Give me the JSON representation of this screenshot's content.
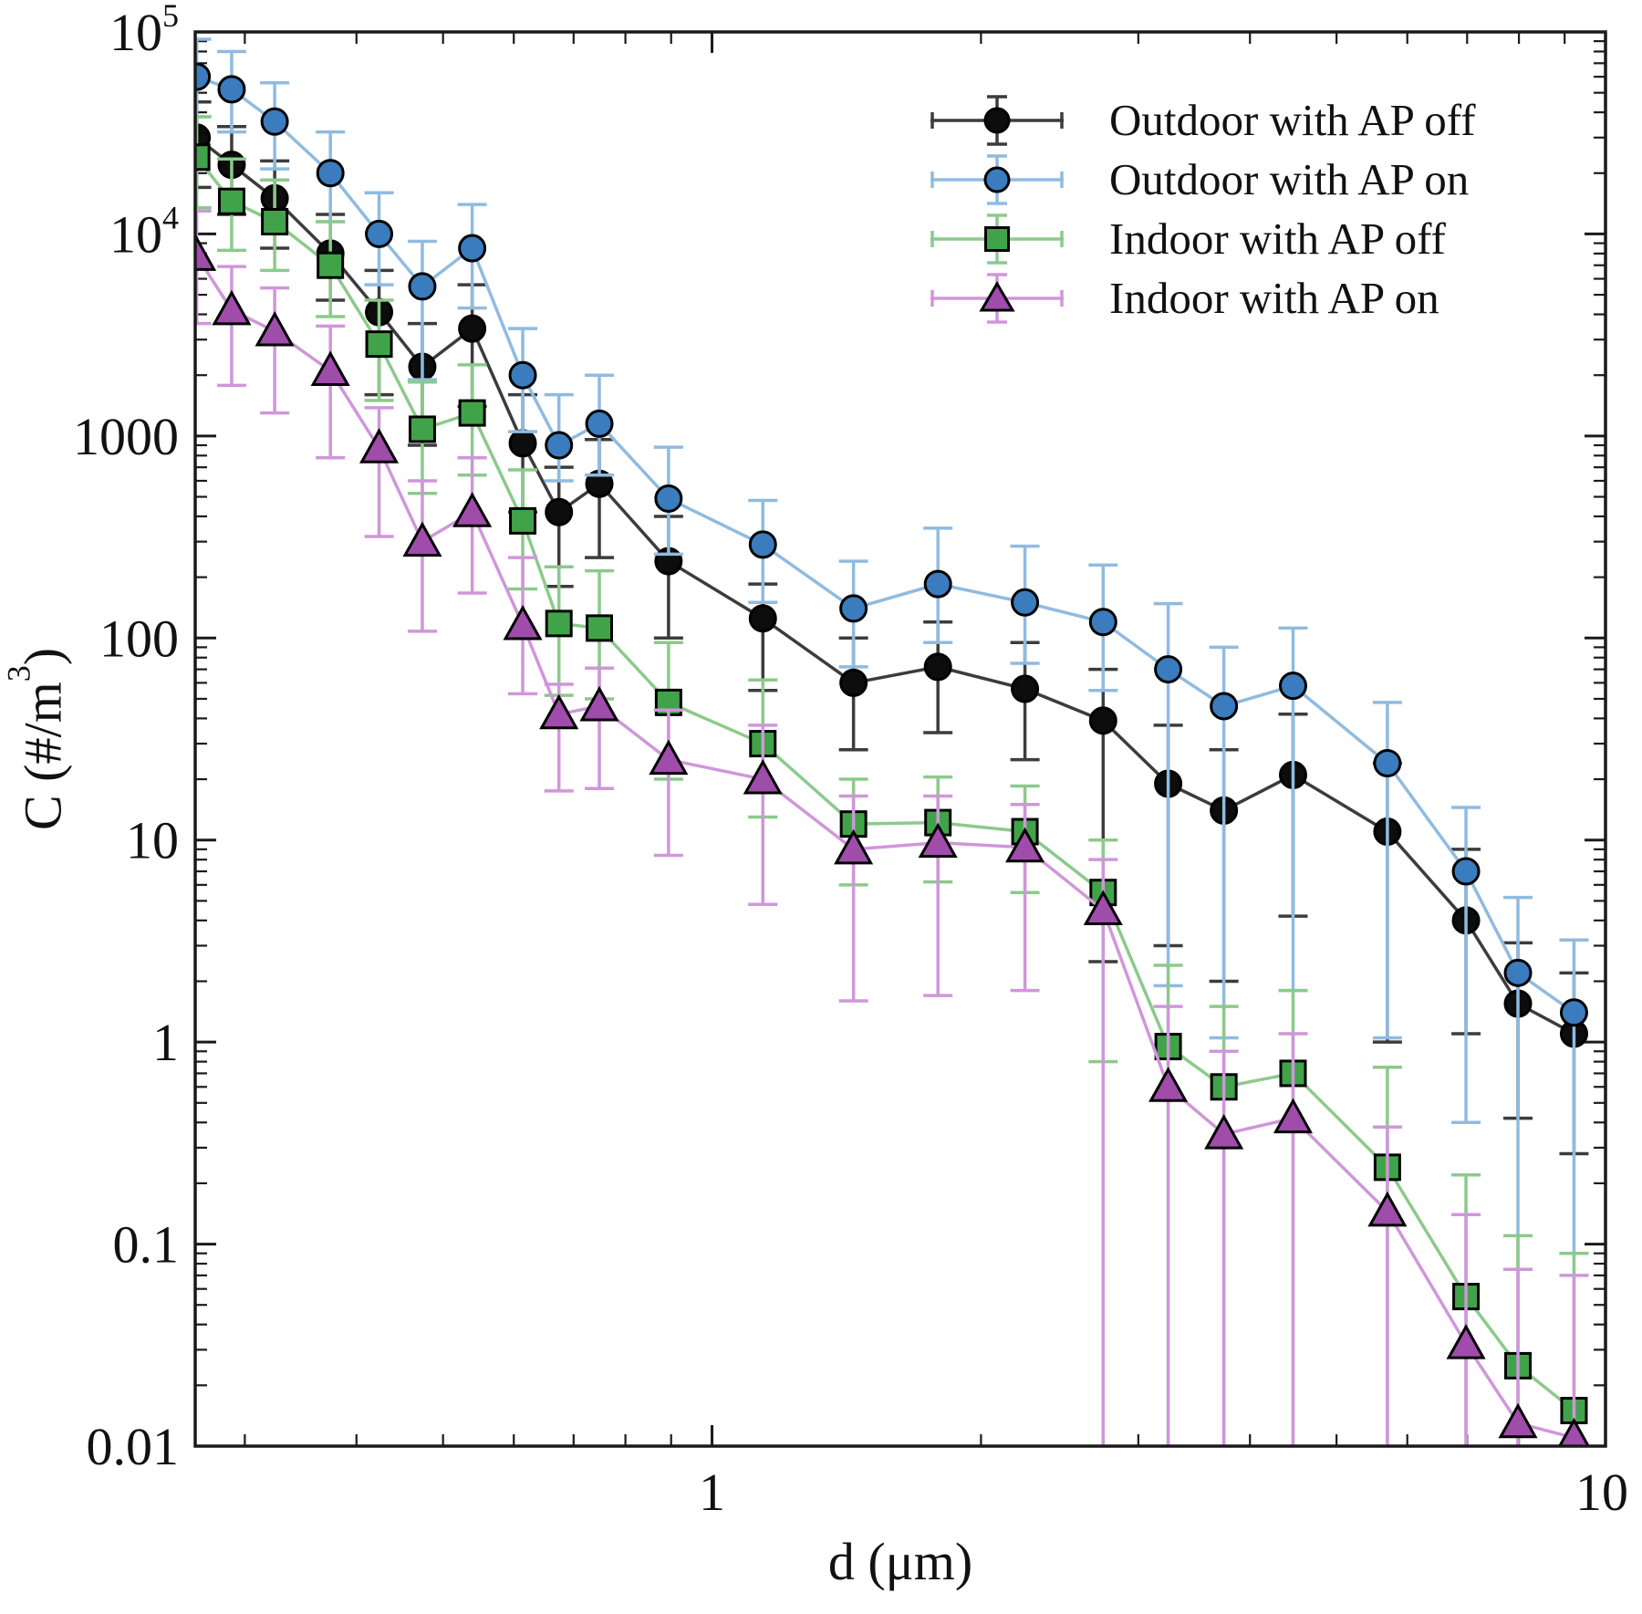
{
  "figure": {
    "background_color": "#ffffff"
  },
  "legend": {
    "position": "top-right-inside",
    "items": [
      {
        "label": "Outdoor with AP off",
        "series_id": "outdoor_ap_off"
      },
      {
        "label": "Outdoor with AP on",
        "series_id": "outdoor_ap_on"
      },
      {
        "label": "Indoor with AP off",
        "series_id": "indoor_ap_off"
      },
      {
        "label": "Indoor with AP on",
        "series_id": "indoor_ap_on"
      }
    ]
  },
  "chart_data": {
    "type": "line",
    "title": "",
    "xlabel": "d (μm)",
    "ylabel_prefix": "C (#/m",
    "ylabel_sup": "3",
    "ylabel_suffix": ")",
    "x_scale": "log",
    "y_scale": "log",
    "xlim": [
      0.264,
      10
    ],
    "ylim": [
      0.01,
      100000
    ],
    "grid": false,
    "frame": "box-with-inward-ticks",
    "x_major_ticks": [
      {
        "label": "1",
        "v": 1
      },
      {
        "label": "10",
        "v": 10
      }
    ],
    "x_minor_ticks": [
      0.3,
      0.4,
      0.5,
      0.6,
      0.7,
      0.8,
      0.9,
      2,
      3,
      4,
      5,
      6,
      7,
      8,
      9
    ],
    "y_major_ticks": [
      {
        "base": "10",
        "sup": "5",
        "v": 100000
      },
      {
        "base": "10",
        "sup": "4",
        "v": 10000
      },
      {
        "base": "1000",
        "v": 1000
      },
      {
        "base": "100",
        "v": 100
      },
      {
        "base": "10",
        "v": 10
      },
      {
        "base": "1",
        "v": 1
      },
      {
        "base": "0.1",
        "v": 0.1
      },
      {
        "base": "0.01",
        "v": 0.01
      }
    ],
    "x": [
      0.265,
      0.29,
      0.324,
      0.374,
      0.424,
      0.474,
      0.539,
      0.614,
      0.674,
      0.748,
      0.894,
      1.14,
      1.44,
      1.79,
      2.24,
      2.74,
      3.24,
      3.74,
      4.47,
      5.7,
      6.98,
      7.98,
      9.22
    ],
    "series": [
      {
        "id": "outdoor_ap_off",
        "name": "Outdoor with AP off",
        "marker": "circle",
        "marker_color": "#0d0d0d",
        "line_color": "#3c3c3c",
        "values": [
          30000,
          22000,
          15000,
          8000,
          4100,
          2200,
          3400,
          920,
          420,
          580,
          240,
          125,
          60,
          72,
          56,
          39,
          19,
          14,
          21,
          11,
          4,
          1.55,
          1.1
        ],
        "err_hi": [
          45000,
          34000,
          23000,
          12500,
          6600,
          3600,
          5600,
          1600,
          700,
          960,
          400,
          185,
          100,
          120,
          95,
          70,
          37,
          28,
          42,
          24,
          9,
          3.1,
          2.2
        ],
        "err_lo": [
          17000,
          12500,
          8500,
          4700,
          1600,
          900,
          1400,
          420,
          180,
          250,
          100,
          55,
          28,
          34,
          25,
          2.5,
          3,
          2,
          4.2,
          1,
          1.1,
          0.42,
          0.28
        ]
      },
      {
        "id": "outdoor_ap_on",
        "name": "Outdoor with AP on",
        "marker": "circle",
        "marker_color": "#3a7cbd",
        "line_color": "#8fbbe0",
        "values": [
          60000,
          52000,
          36000,
          20000,
          10000,
          5500,
          8500,
          2000,
          900,
          1150,
          490,
          290,
          140,
          185,
          150,
          120,
          70,
          46,
          58,
          24,
          7,
          2.2,
          1.4
        ],
        "err_hi": [
          92000,
          80000,
          56000,
          32000,
          16000,
          9200,
          14000,
          3400,
          1600,
          2000,
          880,
          480,
          240,
          350,
          285,
          230,
          148,
          90,
          112,
          48,
          14.5,
          5.2,
          3.2
        ],
        "err_lo": [
          38000,
          32000,
          21000,
          11500,
          5600,
          1900,
          4300,
          1050,
          600,
          640,
          260,
          150,
          72,
          95,
          75,
          55,
          1.9,
          1.05,
          1.8,
          1.05,
          0.4,
          0.075,
          0.09
        ]
      },
      {
        "id": "indoor_ap_off",
        "name": "Indoor with AP off",
        "marker": "square",
        "marker_color": "#41a349",
        "line_color": "#8bca8b",
        "values": [
          24000,
          14500,
          11500,
          7000,
          2850,
          1080,
          1300,
          380,
          118,
          112,
          48,
          30,
          12,
          12.2,
          11,
          5.5,
          0.95,
          0.6,
          0.7,
          0.24,
          0.055,
          0.025,
          0.015
        ],
        "err_hi": [
          38000,
          23500,
          18500,
          11500,
          4700,
          1850,
          2250,
          680,
          225,
          215,
          95,
          62,
          20,
          20.5,
          18.5,
          10,
          2.4,
          1.5,
          1.8,
          0.75,
          0.22,
          0.11,
          0.09
        ],
        "err_lo": [
          13500,
          8300,
          6600,
          3900,
          1500,
          520,
          640,
          175,
          52,
          50,
          20,
          13,
          6,
          6.2,
          5.5,
          0.8,
          null,
          null,
          null,
          null,
          null,
          null,
          null
        ]
      },
      {
        "id": "indoor_ap_on",
        "name": "Indoor with AP on",
        "marker": "triangle",
        "marker_color": "#a04cab",
        "line_color": "#d096da",
        "values": [
          7800,
          4200,
          3300,
          2100,
          870,
          300,
          420,
          116,
          42,
          46,
          25,
          20,
          9,
          9.7,
          9.2,
          4.5,
          0.6,
          0.35,
          0.42,
          0.145,
          0.032,
          0.013,
          0.011
        ],
        "err_hi": [
          13000,
          6900,
          5400,
          3500,
          1380,
          600,
          780,
          250,
          59,
          71,
          44,
          37,
          16.5,
          16.5,
          15,
          8,
          1.5,
          0.9,
          1.1,
          0.38,
          0.14,
          0.075,
          0.07
        ],
        "err_lo": [
          3600,
          1780,
          1300,
          780,
          318,
          108,
          167,
          53,
          17.5,
          18,
          8.4,
          4.8,
          1.6,
          1.7,
          1.8,
          null,
          null,
          null,
          null,
          null,
          null,
          null,
          null
        ]
      }
    ],
    "notes": "err_lo value null means the lower whisker extends below the plotted axis range (clipped at axis floor 0.01)"
  }
}
